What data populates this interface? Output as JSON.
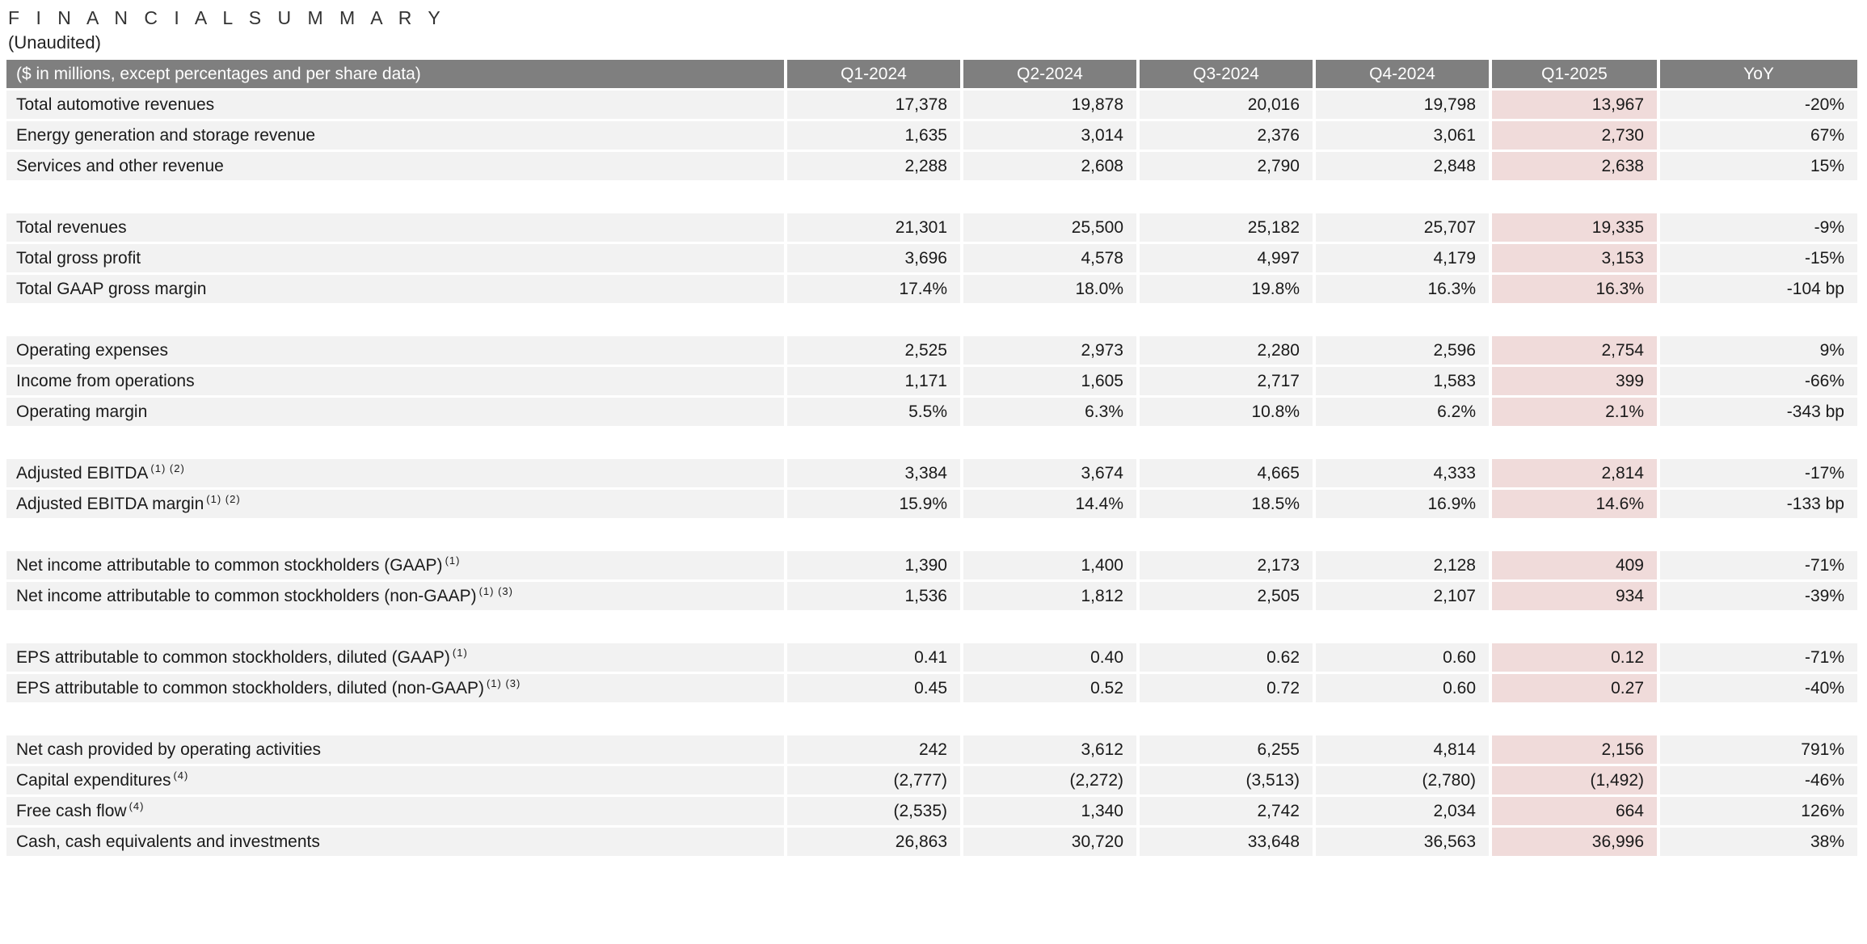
{
  "header": {
    "title": "F I N A N C I A L   S U M M A R Y",
    "subtitle": "(Unaudited)"
  },
  "colors": {
    "header_bg": "#7f7f7f",
    "header_text": "#ffffff",
    "row_bg": "#f2f2f2",
    "highlight_bg": "#f0dbda",
    "text": "#1a1a1a"
  },
  "table": {
    "unit_label": "($ in millions, except percentages and per share data)",
    "highlight_column": "Q1-2025",
    "columns": [
      "Q1-2024",
      "Q2-2024",
      "Q3-2024",
      "Q4-2024",
      "Q1-2025",
      "YoY"
    ],
    "rows": [
      {
        "label": "Total automotive revenues",
        "sup": "",
        "values": [
          "17,378",
          "19,878",
          "20,016",
          "19,798",
          "13,967",
          "-20%"
        ]
      },
      {
        "label": "Energy generation and storage revenue",
        "sup": "",
        "values": [
          "1,635",
          "3,014",
          "2,376",
          "3,061",
          "2,730",
          "67%"
        ]
      },
      {
        "label": "Services and other revenue",
        "sup": "",
        "values": [
          "2,288",
          "2,608",
          "2,790",
          "2,848",
          "2,638",
          "15%"
        ]
      },
      {
        "spacer": true
      },
      {
        "label": "Total revenues",
        "sup": "",
        "values": [
          "21,301",
          "25,500",
          "25,182",
          "25,707",
          "19,335",
          "-9%"
        ]
      },
      {
        "label": "Total gross profit",
        "sup": "",
        "values": [
          "3,696",
          "4,578",
          "4,997",
          "4,179",
          "3,153",
          "-15%"
        ]
      },
      {
        "label": "Total GAAP gross margin",
        "sup": "",
        "values": [
          "17.4%",
          "18.0%",
          "19.8%",
          "16.3%",
          "16.3%",
          "-104 bp"
        ]
      },
      {
        "spacer": true
      },
      {
        "label": "Operating expenses",
        "sup": "",
        "values": [
          "2,525",
          "2,973",
          "2,280",
          "2,596",
          "2,754",
          "9%"
        ]
      },
      {
        "label": "Income from operations",
        "sup": "",
        "values": [
          "1,171",
          "1,605",
          "2,717",
          "1,583",
          "399",
          "-66%"
        ]
      },
      {
        "label": "Operating margin",
        "sup": "",
        "values": [
          "5.5%",
          "6.3%",
          "10.8%",
          "6.2%",
          "2.1%",
          "-343 bp"
        ]
      },
      {
        "spacer": true
      },
      {
        "label": "Adjusted EBITDA",
        "sup": "(1) (2)",
        "values": [
          "3,384",
          "3,674",
          "4,665",
          "4,333",
          "2,814",
          "-17%"
        ]
      },
      {
        "label": "Adjusted EBITDA margin",
        "sup": "(1) (2)",
        "values": [
          "15.9%",
          "14.4%",
          "18.5%",
          "16.9%",
          "14.6%",
          "-133 bp"
        ]
      },
      {
        "spacer": true
      },
      {
        "label": "Net income attributable to common stockholders (GAAP)",
        "sup": "(1)",
        "values": [
          "1,390",
          "1,400",
          "2,173",
          "2,128",
          "409",
          "-71%"
        ]
      },
      {
        "label": "Net income attributable to common stockholders (non-GAAP)",
        "sup": "(1) (3)",
        "values": [
          "1,536",
          "1,812",
          "2,505",
          "2,107",
          "934",
          "-39%"
        ]
      },
      {
        "spacer": true
      },
      {
        "label": "EPS attributable to common stockholders, diluted (GAAP)",
        "sup": "(1)",
        "values": [
          "0.41",
          "0.40",
          "0.62",
          "0.60",
          "0.12",
          "-71%"
        ]
      },
      {
        "label": "EPS attributable to common stockholders, diluted (non-GAAP)",
        "sup": "(1) (3)",
        "values": [
          "0.45",
          "0.52",
          "0.72",
          "0.60",
          "0.27",
          "-40%"
        ]
      },
      {
        "spacer": true
      },
      {
        "label": "Net cash provided by operating activities",
        "sup": "",
        "values": [
          "242",
          "3,612",
          "6,255",
          "4,814",
          "2,156",
          "791%"
        ]
      },
      {
        "label": "Capital expenditures",
        "sup": "(4)",
        "values": [
          "(2,777)",
          "(2,272)",
          "(3,513)",
          "(2,780)",
          "(1,492)",
          "-46%"
        ]
      },
      {
        "label": "Free cash flow",
        "sup": "(4)",
        "values": [
          "(2,535)",
          "1,340",
          "2,742",
          "2,034",
          "664",
          "126%"
        ]
      },
      {
        "label": "Cash, cash equivalents and investments",
        "sup": "",
        "values": [
          "26,863",
          "30,720",
          "33,648",
          "36,563",
          "36,996",
          "38%"
        ]
      }
    ]
  }
}
